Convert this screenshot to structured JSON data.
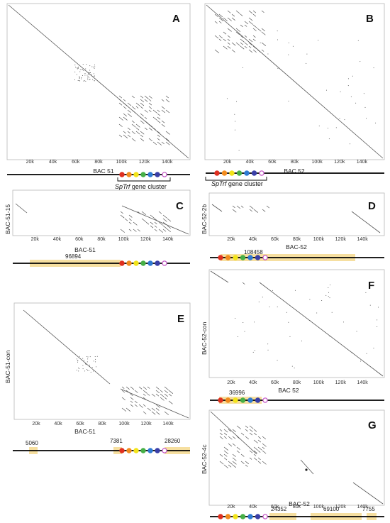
{
  "panels": [
    {
      "letter": "A",
      "x_label": "BAC 51",
      "y_label": "",
      "ticks": [
        "20k",
        "40k",
        "60k",
        "80k",
        "100k",
        "120k",
        "140k"
      ],
      "cluster_label_italic": "SpTrf",
      "cluster_label_rest": " gene cluster",
      "segments": []
    },
    {
      "letter": "B",
      "x_label": "BAC 52",
      "y_label": "",
      "ticks": [
        "20k",
        "40k",
        "60k",
        "80k",
        "100k",
        "120k",
        "140k"
      ],
      "cluster_label_italic": "SpTrf",
      "cluster_label_rest": " gene cluster",
      "segments": []
    },
    {
      "letter": "C",
      "x_label": "BAC-51",
      "y_label": "BAC-51-15",
      "ticks": [
        "20k",
        "40k",
        "60k",
        "80k",
        "100k",
        "120k",
        "140k"
      ],
      "segments": [
        "96894"
      ]
    },
    {
      "letter": "D",
      "x_label": "BAC-52",
      "y_label": "BAC-52-2b",
      "ticks": [
        "20k",
        "40k",
        "60k",
        "80k",
        "100k",
        "120k",
        "140k"
      ],
      "segments": [
        "108458"
      ]
    },
    {
      "letter": "E",
      "x_label": "BAC-51",
      "y_label": "BAC-51-con",
      "ticks": [
        "20k",
        "40k",
        "60k",
        "80k",
        "100k",
        "120k",
        "140k"
      ],
      "segments": [
        "5060",
        "7381",
        "28260"
      ]
    },
    {
      "letter": "F",
      "x_label": "BAC 52",
      "y_label": "BAC-52-con",
      "ticks": [
        "20k",
        "40k",
        "60k",
        "80k",
        "100k",
        "120k",
        "140k"
      ],
      "segments": [
        "36996"
      ]
    },
    {
      "letter": "G",
      "x_label": "BAC-52",
      "y_label": "BAC-52-4c",
      "ticks": [
        "20k",
        "40k",
        "60k",
        "80k",
        "100k",
        "120k",
        "140k"
      ],
      "segments": [
        "24352",
        "69100",
        "7755"
      ]
    }
  ],
  "gene_colors": [
    "#e03020",
    "#f28c1e",
    "#f2e41a",
    "#47b047",
    "#2f7bd4",
    "#3a3fa8",
    "#c455c6"
  ],
  "highlight_color": "#f6dfa0",
  "dot_color": "#444444"
}
